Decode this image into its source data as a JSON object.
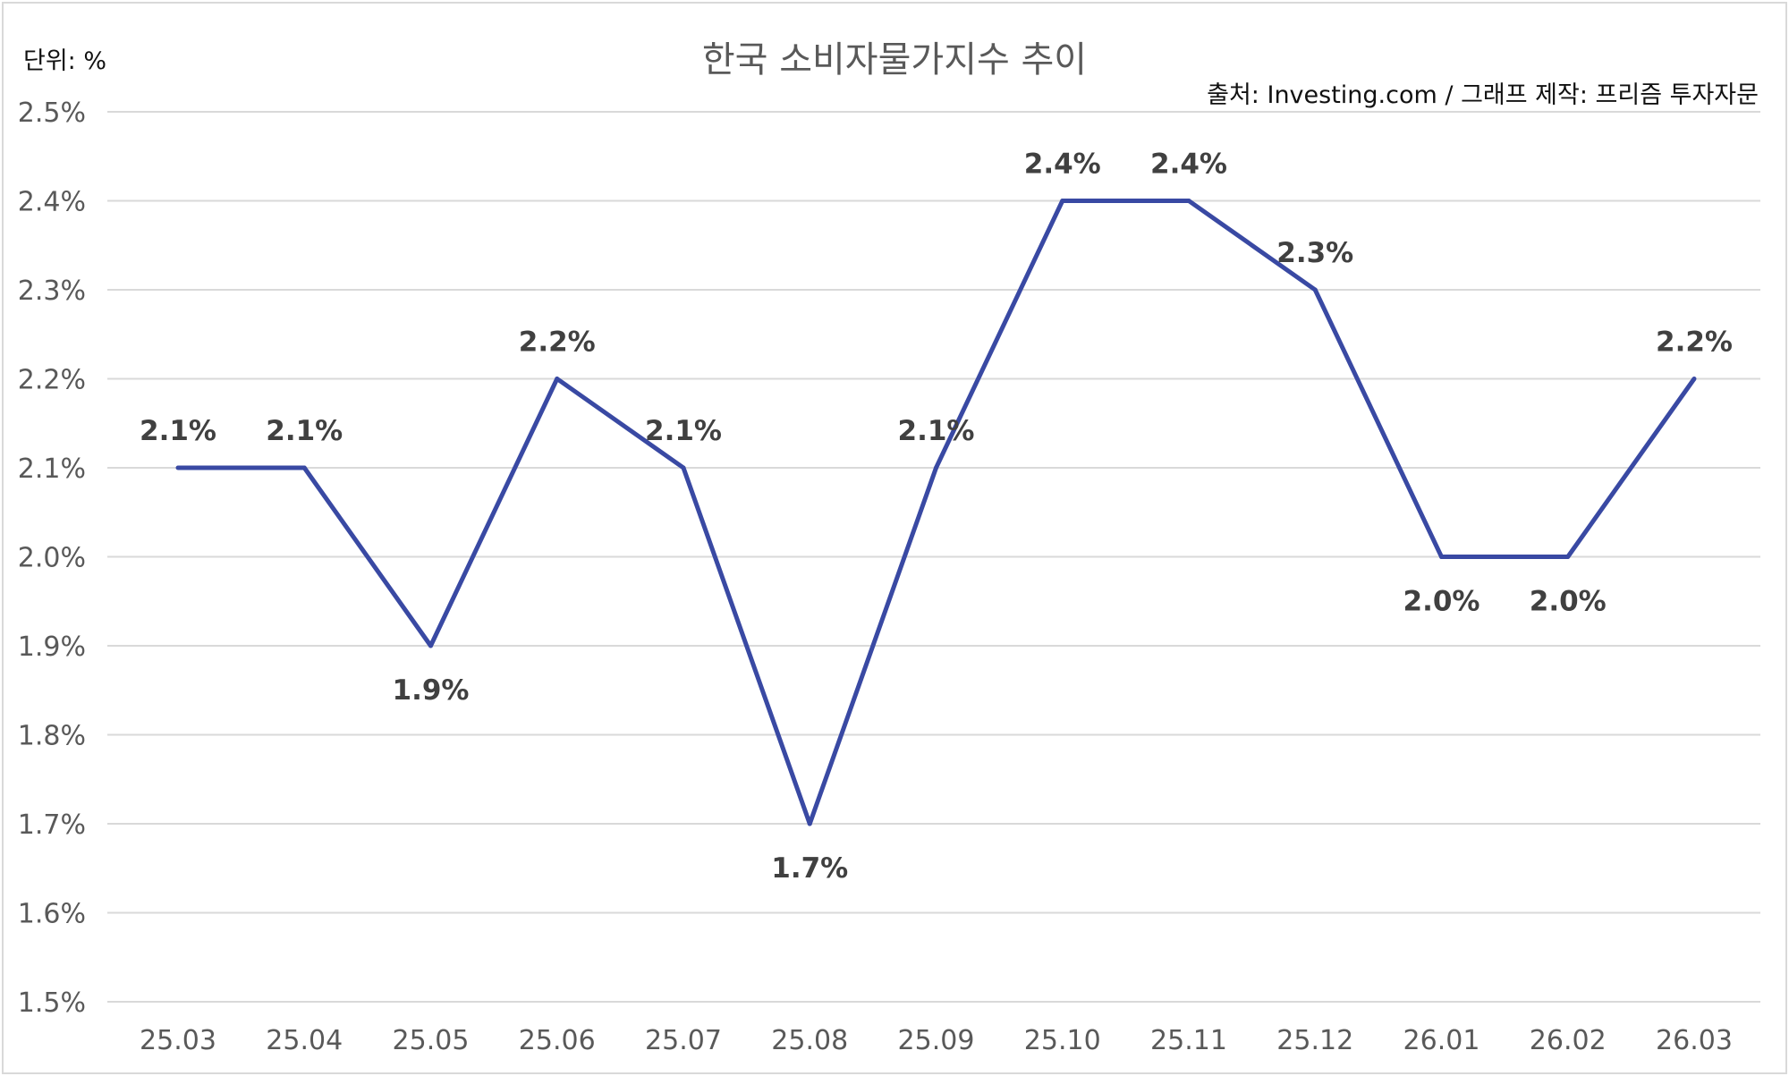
{
  "chart_data": {
    "type": "line",
    "title": "한국 소비자물가지수 추이",
    "unit_label": "단위: %",
    "source": "출처: Investing.com / 그래프 제작: 프리즘 투자자문",
    "xlabel": "",
    "ylabel": "",
    "categories": [
      "25.03",
      "25.04",
      "25.05",
      "25.06",
      "25.07",
      "25.08",
      "25.09",
      "25.10",
      "25.11",
      "25.12",
      "26.01",
      "26.02",
      "26.03"
    ],
    "series": [
      {
        "values": [
          2.1,
          2.1,
          1.9,
          2.2,
          2.1,
          1.7,
          2.1,
          2.4,
          2.4,
          2.3,
          2.0,
          2.0,
          2.2
        ]
      }
    ],
    "data_labels": [
      "2.1%",
      "2.1%",
      "1.9%",
      "2.2%",
      "2.1%",
      "1.7%",
      "2.1%",
      "2.4%",
      "2.4%",
      "2.3%",
      "2.0%",
      "2.0%",
      "2.2%"
    ],
    "label_positions": [
      "above",
      "above",
      "below",
      "above",
      "above",
      "below",
      "above",
      "above",
      "above",
      "above",
      "below",
      "below",
      "above"
    ],
    "y_ticks": [
      "1.5%",
      "1.6%",
      "1.7%",
      "1.8%",
      "1.9%",
      "2.0%",
      "2.1%",
      "2.2%",
      "2.3%",
      "2.4%",
      "2.5%"
    ],
    "ylim": [
      1.5,
      2.5
    ],
    "grid": true,
    "legend": "none",
    "colors": {
      "line": "#3949a3",
      "grid": "#d9d9d9",
      "label": "#404040",
      "tick": "#595959"
    }
  }
}
